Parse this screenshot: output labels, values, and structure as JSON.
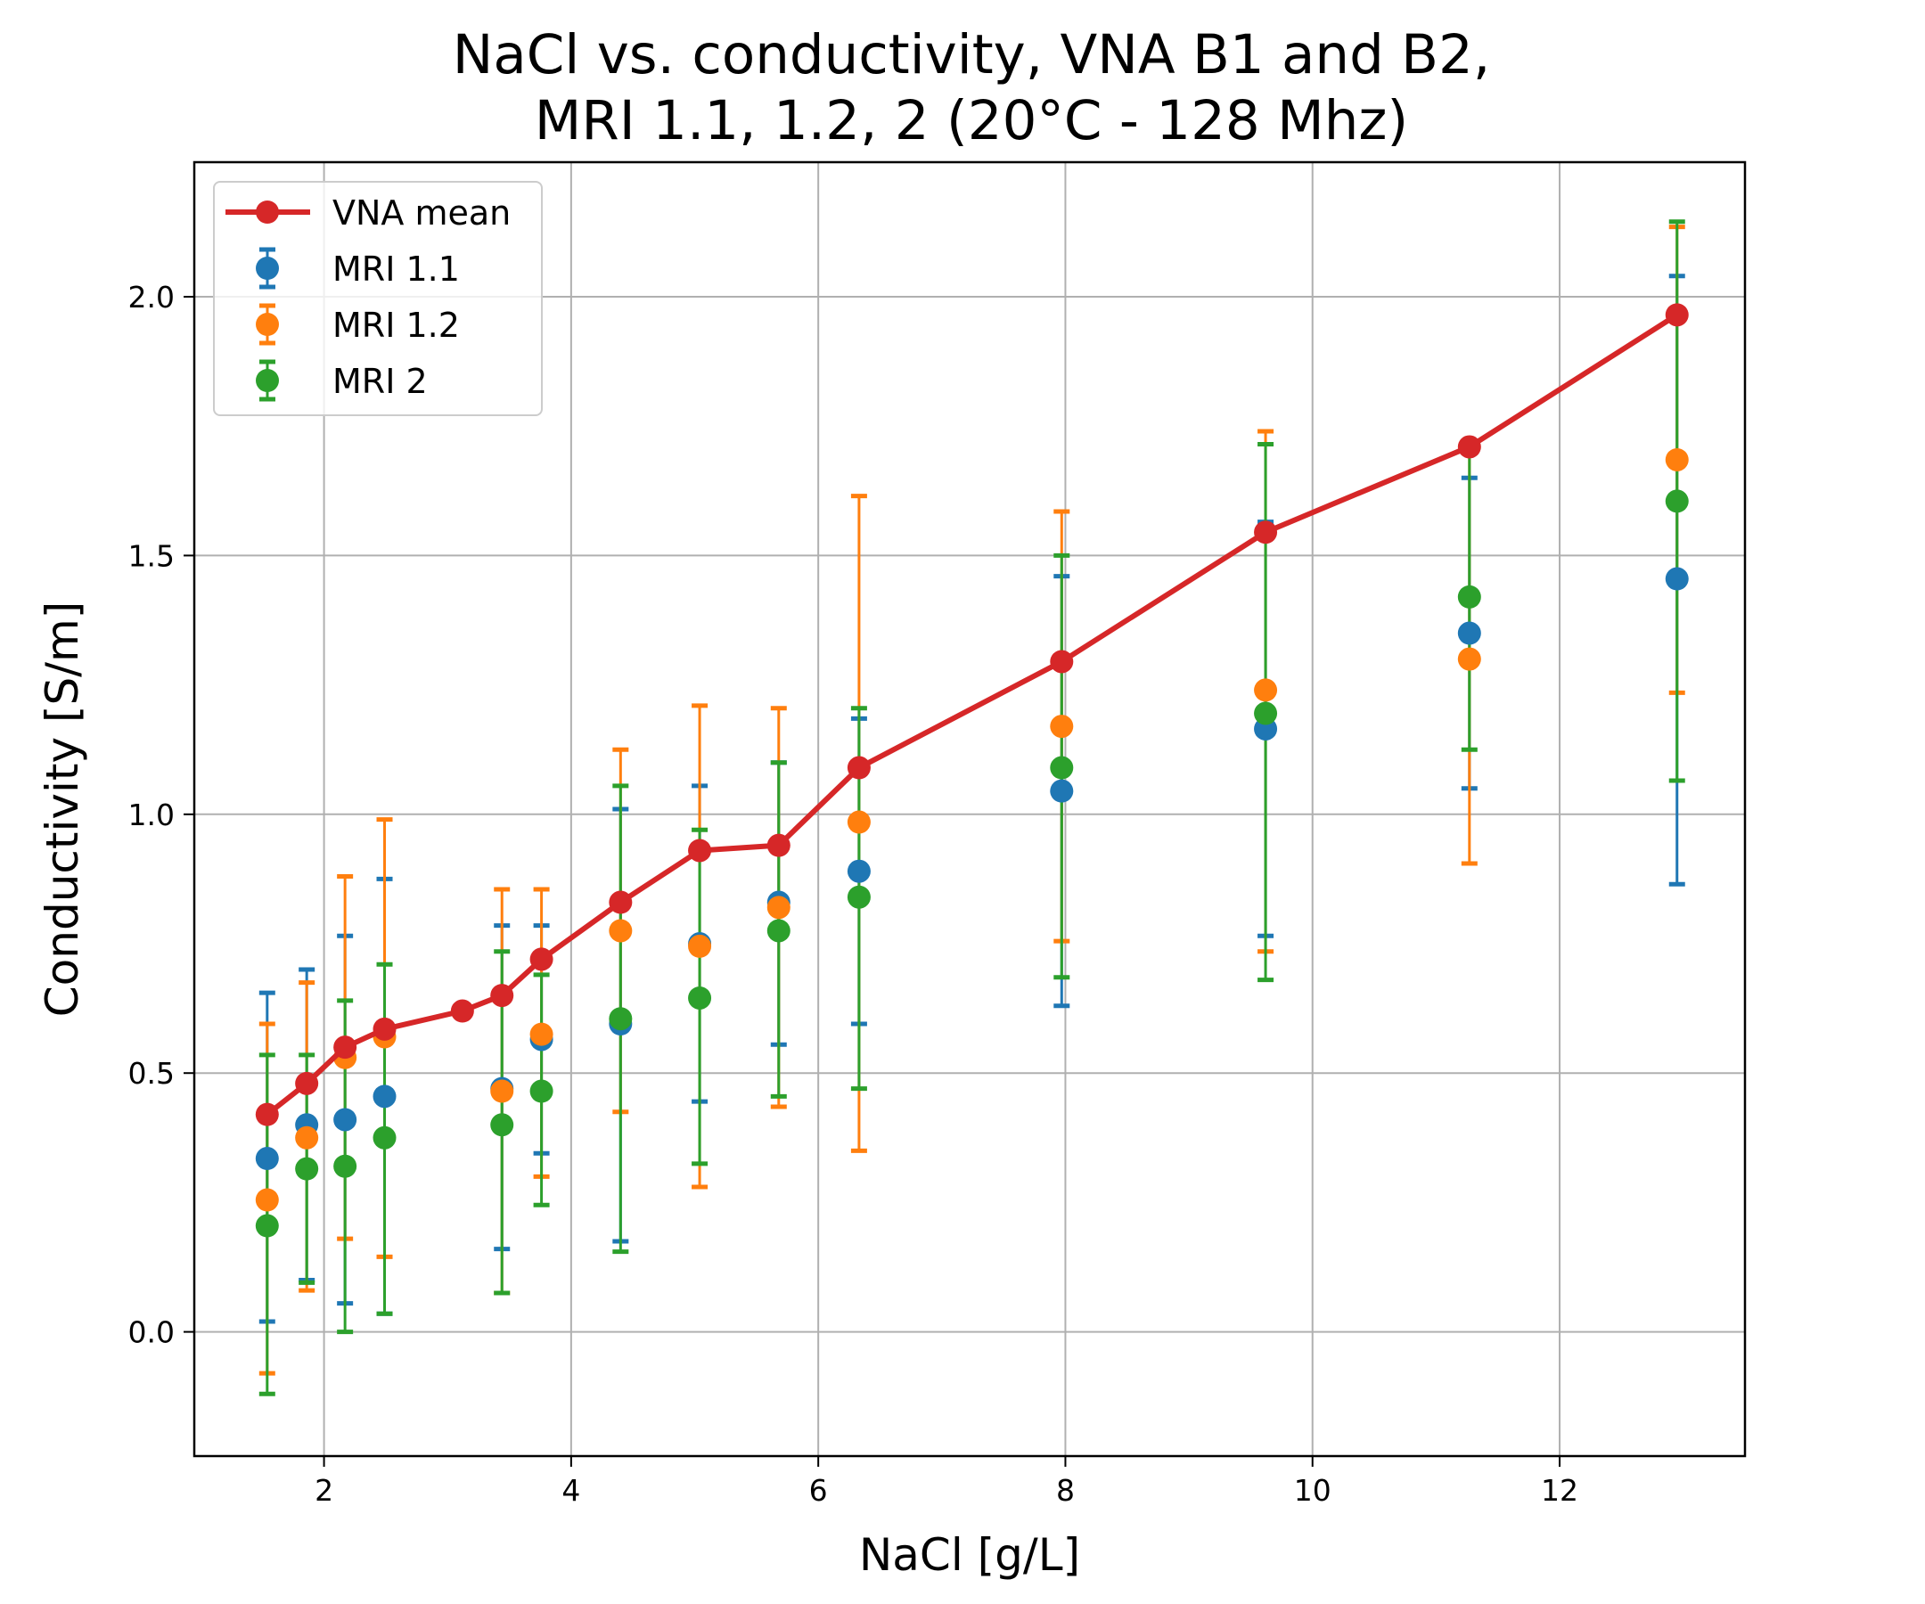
{
  "chart_data": {
    "type": "scatter",
    "title_line1": "NaCl vs. conductivity, VNA B1 and B2,",
    "title_line2": "MRI 1.1, 1.2, 2 (20°C - 128 Mhz)",
    "xlabel": "NaCl [g/L]",
    "ylabel": "Conductivity [S/m]",
    "xlim": [
      0.95,
      13.5
    ],
    "ylim": [
      -0.24,
      2.26
    ],
    "xticks": [
      2,
      4,
      6,
      8,
      10,
      12
    ],
    "xtick_labels": [
      "2",
      "4",
      "6",
      "8",
      "10",
      "12"
    ],
    "yticks": [
      0.0,
      0.5,
      1.0,
      1.5,
      2.0
    ],
    "ytick_labels": [
      "0.0",
      "0.5",
      "1.0",
      "1.5",
      "2.0"
    ],
    "grid": true,
    "legend_position": "top-left",
    "legend": [
      "VNA mean",
      "MRI 1.1",
      "MRI 1.2",
      "MRI 2"
    ],
    "vna_mean": {
      "name": "VNA mean",
      "color": "#d62728",
      "x": [
        1.54,
        1.86,
        2.17,
        2.49,
        3.12,
        3.44,
        3.76,
        4.4,
        5.04,
        5.68,
        6.33,
        7.97,
        9.62,
        11.27,
        12.95
      ],
      "y": [
        0.42,
        0.48,
        0.55,
        0.585,
        0.62,
        0.65,
        0.72,
        0.83,
        0.93,
        0.94,
        1.09,
        1.295,
        1.545,
        1.71,
        1.965
      ]
    },
    "mri_series": [
      {
        "name": "MRI 1.1",
        "color": "#1f77b4",
        "x": [
          1.54,
          1.86,
          2.17,
          2.49,
          3.44,
          3.76,
          4.4,
          5.04,
          5.68,
          6.33,
          7.97,
          9.62,
          11.27,
          12.95
        ],
        "y": [
          0.335,
          0.4,
          0.41,
          0.455,
          0.47,
          0.565,
          0.595,
          0.75,
          0.83,
          0.89,
          1.045,
          1.165,
          1.35,
          1.455
        ],
        "lower": [
          0.02,
          0.1,
          0.055,
          0.035,
          0.16,
          0.345,
          0.175,
          0.445,
          0.555,
          0.595,
          0.63,
          0.765,
          1.05,
          0.865
        ],
        "upper": [
          0.655,
          0.7,
          0.765,
          0.875,
          0.785,
          0.785,
          1.01,
          1.055,
          1.1,
          1.185,
          1.46,
          1.565,
          1.65,
          2.04
        ]
      },
      {
        "name": "MRI 1.2",
        "color": "#ff7f0e",
        "x": [
          1.54,
          1.86,
          2.17,
          2.49,
          3.44,
          3.76,
          4.4,
          5.04,
          5.68,
          6.33,
          7.97,
          9.62,
          11.27,
          12.95
        ],
        "y": [
          0.255,
          0.375,
          0.53,
          0.57,
          0.465,
          0.575,
          0.775,
          0.745,
          0.82,
          0.985,
          1.17,
          1.24,
          1.3,
          1.685
        ],
        "lower": [
          -0.08,
          0.08,
          0.18,
          0.145,
          0.075,
          0.3,
          0.425,
          0.28,
          0.435,
          0.35,
          0.755,
          0.735,
          0.905,
          1.235
        ],
        "upper": [
          0.595,
          0.675,
          0.88,
          0.99,
          0.855,
          0.855,
          1.125,
          1.21,
          1.205,
          1.615,
          1.585,
          1.74,
          1.7,
          2.135
        ]
      },
      {
        "name": "MRI 2",
        "color": "#2ca02c",
        "x": [
          1.54,
          1.86,
          2.17,
          2.49,
          3.44,
          3.76,
          4.4,
          5.04,
          5.68,
          6.33,
          7.97,
          9.62,
          11.27,
          12.95
        ],
        "y": [
          0.205,
          0.315,
          0.32,
          0.375,
          0.4,
          0.465,
          0.605,
          0.645,
          0.775,
          0.84,
          1.09,
          1.195,
          1.42,
          1.605
        ],
        "lower": [
          -0.12,
          0.095,
          0.0,
          0.035,
          0.075,
          0.245,
          0.155,
          0.325,
          0.455,
          0.47,
          0.685,
          0.68,
          1.125,
          1.065
        ],
        "upper": [
          0.535,
          0.535,
          0.64,
          0.71,
          0.735,
          0.69,
          1.055,
          0.97,
          1.1,
          1.205,
          1.5,
          1.715,
          1.715,
          2.145
        ]
      }
    ]
  }
}
